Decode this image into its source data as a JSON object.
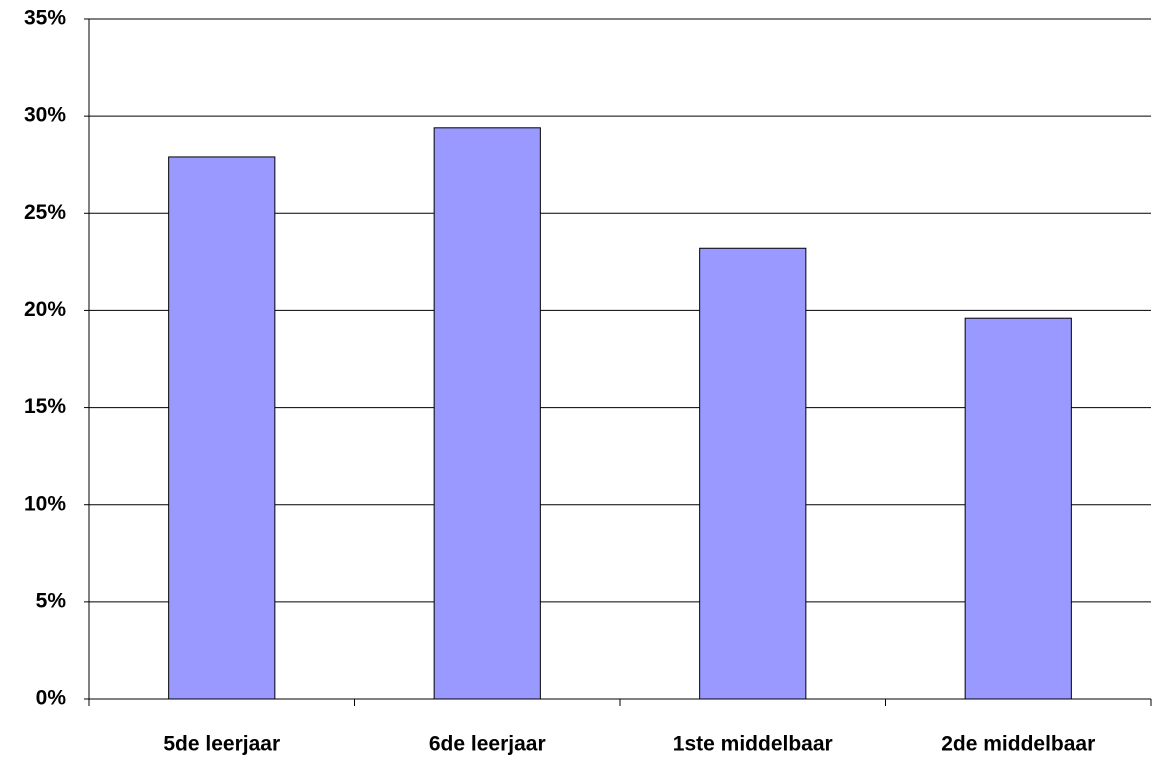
{
  "chart_data": {
    "type": "bar",
    "categories": [
      "5de leerjaar",
      "6de leerjaar",
      "1ste middelbaar",
      "2de middelbaar"
    ],
    "values": [
      27.9,
      29.4,
      23.2,
      19.6
    ],
    "color": "#9999ff",
    "ylim": [
      0,
      35
    ],
    "yticks": [
      {
        "value": 0,
        "label": "0%"
      },
      {
        "value": 5,
        "label": "5%"
      },
      {
        "value": 10,
        "label": "10%"
      },
      {
        "value": 15,
        "label": "15%"
      },
      {
        "value": 20,
        "label": "20%"
      },
      {
        "value": 25,
        "label": "25%"
      },
      {
        "value": 30,
        "label": "30%"
      },
      {
        "value": 35,
        "label": "35%"
      }
    ],
    "grid": true
  }
}
